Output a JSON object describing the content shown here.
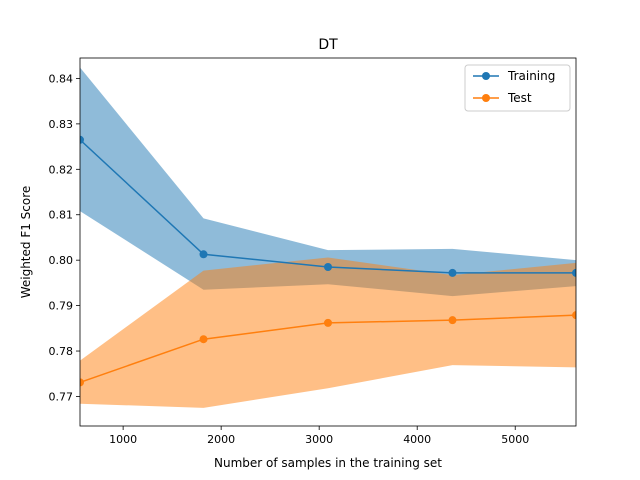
{
  "chart_data": {
    "type": "line",
    "title": "DT",
    "xlabel": "Number of samples in the training set",
    "ylabel": "Weighted F1 Score",
    "xlim": [
      560,
      5620
    ],
    "ylim": [
      0.7635,
      0.8445
    ],
    "xticks": [
      1000,
      2000,
      3000,
      4000,
      5000
    ],
    "xtick_labels": [
      "1000",
      "2000",
      "3000",
      "4000",
      "5000"
    ],
    "yticks": [
      0.77,
      0.78,
      0.79,
      0.8,
      0.81,
      0.82,
      0.83,
      0.84
    ],
    "ytick_labels": [
      "0.77",
      "0.78",
      "0.79",
      "0.80",
      "0.81",
      "0.82",
      "0.83",
      "0.84"
    ],
    "x": [
      560,
      1820,
      3090,
      4360,
      5620
    ],
    "grid": false,
    "legend_position": "top-right",
    "series": [
      {
        "name": "Training",
        "color": "#1f77b4",
        "band_color": "#1f77b4",
        "values": [
          0.8265,
          0.8013,
          0.7985,
          0.7972,
          0.7972
        ],
        "lower": [
          0.8108,
          0.7935,
          0.7947,
          0.7921,
          0.7943
        ],
        "upper": [
          0.8424,
          0.8092,
          0.8022,
          0.8025,
          0.8
        ]
      },
      {
        "name": "Test",
        "color": "#ff7f0e",
        "band_color": "#ff7f0e",
        "values": [
          0.7731,
          0.7826,
          0.7862,
          0.7868,
          0.7879
        ],
        "lower": [
          0.7684,
          0.7675,
          0.7718,
          0.7769,
          0.7764
        ],
        "upper": [
          0.7779,
          0.7977,
          0.8006,
          0.7967,
          0.7994
        ]
      }
    ]
  }
}
